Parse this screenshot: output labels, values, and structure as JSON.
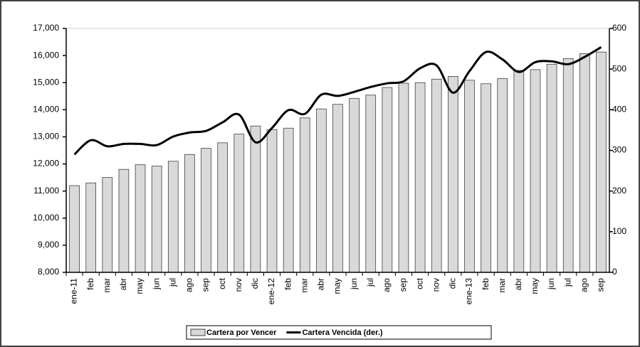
{
  "chart_data": {
    "type": "bar_line",
    "categories": [
      "ene-11",
      "feb",
      "mar",
      "abr",
      "may",
      "jun",
      "jul",
      "ago",
      "sep",
      "oct",
      "nov",
      "dic",
      "ene-12",
      "feb",
      "mar",
      "abr",
      "may",
      "jun",
      "jul",
      "ago",
      "sep",
      "oct",
      "nov",
      "dic",
      "ene-13",
      "feb",
      "mar",
      "abr",
      "may",
      "jun",
      "jul",
      "ago",
      "sep"
    ],
    "series": [
      {
        "name": "Cartera por Vencer",
        "type": "bar",
        "color": "#d9d9d9",
        "axis": "y",
        "values": [
          11200,
          11300,
          11500,
          11800,
          11970,
          11920,
          12100,
          12350,
          12580,
          12780,
          13100,
          13400,
          13270,
          13320,
          13700,
          14030,
          14200,
          14420,
          14540,
          14820,
          14980,
          15000,
          15130,
          15230,
          15090,
          14960,
          15150,
          15450,
          15480,
          15680,
          15890,
          16070,
          16130
        ]
      },
      {
        "name": "Cartera Vencida (der.)",
        "type": "line",
        "color": "#000000",
        "axis": "y2",
        "values": [
          290,
          325,
          310,
          316,
          316,
          313,
          334,
          344,
          348,
          369,
          388,
          320,
          355,
          399,
          390,
          437,
          434,
          444,
          456,
          465,
          470,
          502,
          509,
          442,
          495,
          542,
          524,
          493,
          517,
          519,
          512,
          530,
          554
        ]
      }
    ],
    "ylim": [
      8000,
      17000
    ],
    "yticks": [
      {
        "value": 8000,
        "label": "8,000"
      },
      {
        "value": 9000,
        "label": "9,000"
      },
      {
        "value": 10000,
        "label": "10,000"
      },
      {
        "value": 11000,
        "label": "11,000"
      },
      {
        "value": 12000,
        "label": "12,000"
      },
      {
        "value": 13000,
        "label": "13,000"
      },
      {
        "value": 14000,
        "label": "14,000"
      },
      {
        "value": 15000,
        "label": "15,000"
      },
      {
        "value": 16000,
        "label": "16,000"
      },
      {
        "value": 17000,
        "label": "17,000"
      }
    ],
    "y2lim": [
      0,
      600
    ],
    "y2ticks": [
      0,
      100,
      200,
      300,
      400,
      500,
      600
    ],
    "legend": "bottom"
  }
}
